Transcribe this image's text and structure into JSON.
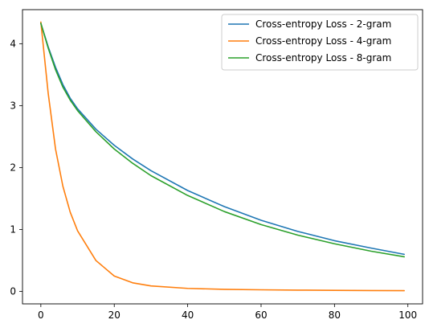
{
  "chart_data": {
    "type": "line",
    "title": "",
    "xlabel": "",
    "ylabel": "",
    "xlim": [
      -5,
      104
    ],
    "ylim": [
      -0.2,
      4.55
    ],
    "xticks": [
      0,
      20,
      40,
      60,
      80,
      100
    ],
    "yticks": [
      0,
      1,
      2,
      3,
      4
    ],
    "xtick_labels": [
      "0",
      "20",
      "40",
      "60",
      "80",
      "100"
    ],
    "ytick_labels": [
      "0",
      "1",
      "2",
      "3",
      "4"
    ],
    "grid": false,
    "legend_position": "top-right",
    "x": [
      0,
      2,
      4,
      6,
      8,
      10,
      15,
      20,
      25,
      30,
      40,
      50,
      60,
      70,
      80,
      90,
      99
    ],
    "series": [
      {
        "name": "Cross-entropy Loss - 2-gram",
        "color": "#1f77b4",
        "values": [
          4.33,
          3.95,
          3.62,
          3.34,
          3.12,
          2.95,
          2.62,
          2.36,
          2.14,
          1.95,
          1.63,
          1.37,
          1.15,
          0.97,
          0.82,
          0.7,
          0.6
        ]
      },
      {
        "name": "Cross-entropy Loss - 4-gram",
        "color": "#ff7f0e",
        "values": [
          4.35,
          3.2,
          2.3,
          1.7,
          1.28,
          0.98,
          0.5,
          0.25,
          0.14,
          0.09,
          0.05,
          0.035,
          0.027,
          0.022,
          0.018,
          0.015,
          0.013
        ]
      },
      {
        "name": "Cross-entropy Loss - 8-gram",
        "color": "#2ca02c",
        "values": [
          4.33,
          3.93,
          3.58,
          3.3,
          3.09,
          2.92,
          2.58,
          2.3,
          2.07,
          1.87,
          1.55,
          1.29,
          1.08,
          0.91,
          0.77,
          0.65,
          0.56
        ]
      }
    ]
  }
}
